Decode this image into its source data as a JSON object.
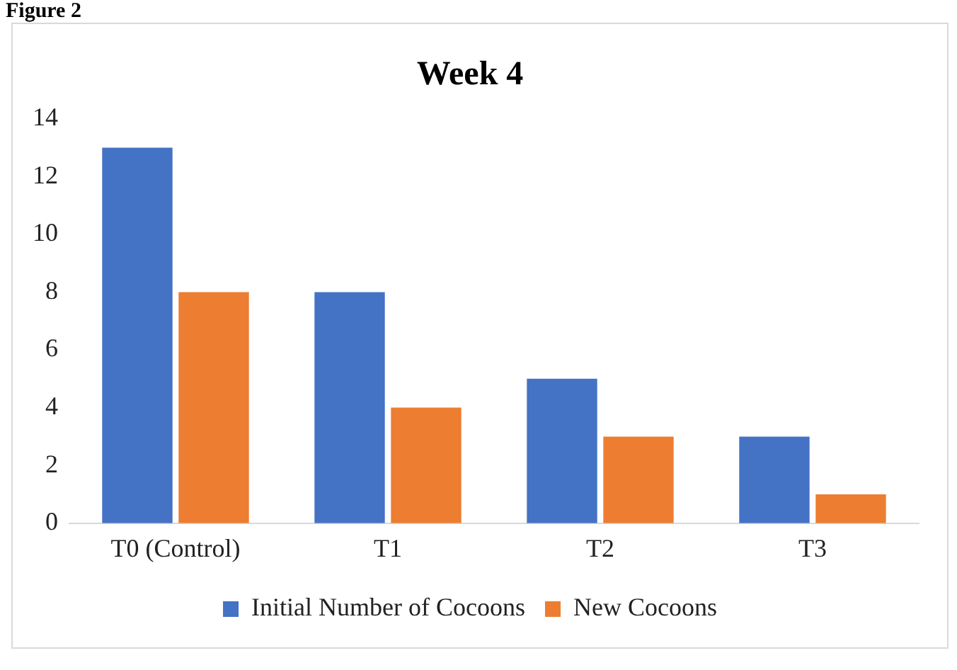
{
  "chart_data": {
    "type": "bar",
    "title": "Week 4",
    "annotations": [
      "Figure 2"
    ],
    "categories": [
      "T0 (Control)",
      "T1",
      "T2",
      "T3"
    ],
    "series": [
      {
        "name": "Initial Number of Cocoons",
        "color": "#4472c4",
        "values": [
          13,
          8,
          5,
          3
        ]
      },
      {
        "name": "New Cocoons",
        "color": "#ed7d31",
        "values": [
          8,
          4,
          3,
          1
        ]
      }
    ],
    "ylim": [
      0,
      14
    ],
    "yticks": [
      0,
      2,
      4,
      6,
      8,
      10,
      12,
      14
    ],
    "grid": false,
    "legend": "bottom"
  }
}
